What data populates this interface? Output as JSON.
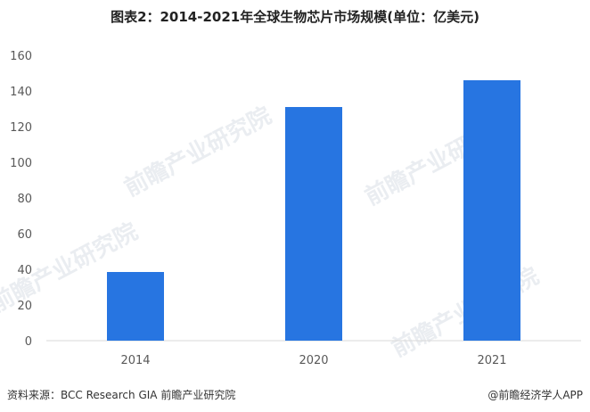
{
  "chart_data": {
    "type": "bar",
    "title": "图表2：2014-2021年全球生物芯片市场规模(单位：亿美元)",
    "categories": [
      "2014",
      "2020",
      "2021"
    ],
    "values": [
      38.5,
      131,
      146
    ],
    "ylim": [
      0,
      160
    ],
    "yticks": [
      0,
      20,
      40,
      60,
      80,
      100,
      120,
      140,
      160
    ],
    "xlabel": "",
    "ylabel": "",
    "grid": false,
    "bar_color": "#2775e1"
  },
  "footer": {
    "source": "资料来源：BCC Research GIA 前瞻产业研究院",
    "brand": "@前瞻经济学人APP"
  },
  "watermark": {
    "text": "前瞻产业研究院"
  }
}
